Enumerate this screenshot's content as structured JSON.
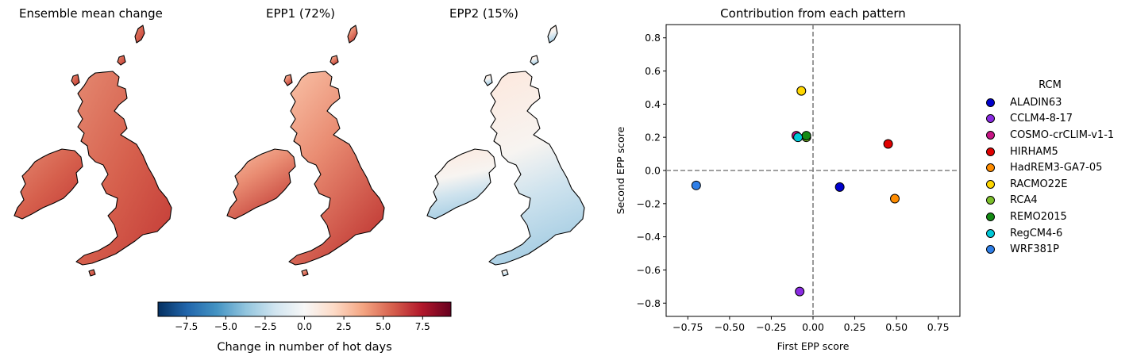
{
  "maps": [
    {
      "title": "Ensemble mean change",
      "pattern": "mean"
    },
    {
      "title": "EPP1 (72%)",
      "pattern": "epp1"
    },
    {
      "title": "EPP2 (15%)",
      "pattern": "epp2"
    }
  ],
  "colorbar": {
    "label": "Change in number of hot days",
    "ticks": [
      -7.5,
      -5.0,
      -2.5,
      0.0,
      2.5,
      5.0,
      7.5
    ],
    "tick_labels": [
      "−7.5",
      "−5.0",
      "−2.5",
      "0.0",
      "2.5",
      "5.0",
      "7.5"
    ],
    "vmin": -9.3,
    "vmax": 9.3,
    "colors": [
      "#053061",
      "#2166ac",
      "#4393c3",
      "#92c5de",
      "#d1e5f0",
      "#f7f7f7",
      "#fddbc7",
      "#f4a582",
      "#d6604d",
      "#b2182b",
      "#67001f"
    ]
  },
  "chart_data": {
    "type": "scatter",
    "title": "Contribution from each pattern",
    "xlabel": "First EPP score",
    "ylabel": "Second EPP score",
    "xlim": [
      -0.88,
      0.88
    ],
    "ylim": [
      -0.88,
      0.88
    ],
    "xticks": [
      -0.75,
      -0.5,
      -0.25,
      0.0,
      0.25,
      0.5,
      0.75
    ],
    "xtick_labels": [
      "−0.75",
      "−0.50",
      "−0.25",
      "0.00",
      "0.25",
      "0.50",
      "0.75"
    ],
    "yticks": [
      -0.8,
      -0.6,
      -0.4,
      -0.2,
      0.0,
      0.2,
      0.4,
      0.6,
      0.8
    ],
    "ytick_labels": [
      "−0.8",
      "−0.6",
      "−0.4",
      "−0.2",
      "0.0",
      "0.2",
      "0.4",
      "0.6",
      "0.8"
    ],
    "grid": false,
    "reference_lines": {
      "x": 0.0,
      "y": 0.0,
      "style": "dashed",
      "color": "#808080"
    },
    "legend_title": "RCM",
    "legend_position": "outside-right",
    "points": [
      {
        "name": "ALADIN63",
        "x": 0.16,
        "y": -0.1,
        "color": "#0000cd"
      },
      {
        "name": "CCLM4-8-17",
        "x": -0.08,
        "y": -0.73,
        "color": "#8a2be2"
      },
      {
        "name": "COSMO-crCLIM-v1-1",
        "x": -0.1,
        "y": 0.21,
        "color": "#c71585"
      },
      {
        "name": "HIRHAM5",
        "x": 0.45,
        "y": 0.16,
        "color": "#e00000"
      },
      {
        "name": "HadREM3-GA7-05",
        "x": 0.49,
        "y": -0.17,
        "color": "#ff8c00"
      },
      {
        "name": "RACMO22E",
        "x": -0.07,
        "y": 0.48,
        "color": "#ffd700"
      },
      {
        "name": "RCA4",
        "x": -0.04,
        "y": 0.2,
        "color": "#7cbf2a"
      },
      {
        "name": "REMO2015",
        "x": -0.04,
        "y": 0.21,
        "color": "#138a13"
      },
      {
        "name": "RegCM4-6",
        "x": -0.09,
        "y": 0.2,
        "color": "#00c8d8"
      },
      {
        "name": "WRF381P",
        "x": -0.7,
        "y": -0.09,
        "color": "#2f7fe8"
      }
    ]
  }
}
